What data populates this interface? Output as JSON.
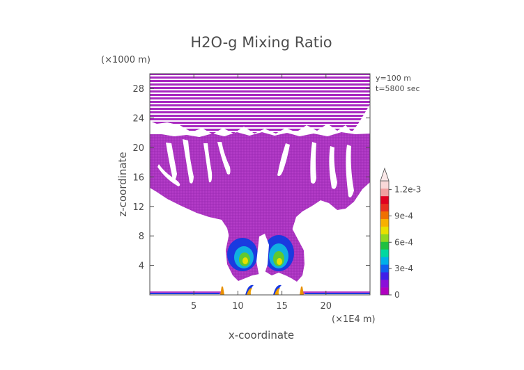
{
  "chart_data": {
    "type": "heatmap",
    "title": "H2O-g Mixing Ratio",
    "xlabel": "x-coordinate",
    "ylabel": "z-coordinate",
    "x_unit": "(×1E4 m)",
    "y_unit": "(×1000 m)",
    "annotations": [
      "y=100 m",
      "t=5800 sec"
    ],
    "xlim": [
      0,
      25
    ],
    "ylim": [
      0,
      30
    ],
    "x_ticks": [
      5,
      10,
      15,
      20
    ],
    "y_ticks": [
      4,
      8,
      12,
      16,
      20,
      24,
      28
    ],
    "x_tick_labels": [
      "5",
      "10",
      "15",
      "20"
    ],
    "y_tick_labels": [
      "4",
      "8",
      "12",
      "16",
      "20",
      "24",
      "28"
    ],
    "colorbar": {
      "min": 0,
      "max": 0.0013,
      "labels": [
        "0",
        "3e-4",
        "6e-4",
        "9e-4",
        "1.2e-3"
      ],
      "label_values": [
        0,
        0.0003,
        0.0006,
        0.0009,
        0.0012
      ],
      "colors": [
        "#b000c0",
        "#8a10d8",
        "#4020e8",
        "#1060f0",
        "#00b0e8",
        "#00d8a0",
        "#20c040",
        "#90d820",
        "#e8e000",
        "#f8b000",
        "#f07000",
        "#e83020",
        "#e00020",
        "#f0a0a0",
        "#f8d8d8"
      ],
      "extend": "max"
    },
    "regions": [
      {
        "name": "upper banded layer",
        "x": [
          0,
          25
        ],
        "z": [
          22,
          30
        ],
        "value": 2e-05
      },
      {
        "name": "anvil layer",
        "x": [
          0,
          25
        ],
        "z": [
          13,
          22
        ],
        "value": 2e-05
      },
      {
        "name": "central column",
        "x": [
          8.5,
          17
        ],
        "z": [
          2,
          13
        ],
        "value": 5e-05
      },
      {
        "name": "left low-level core",
        "x": [
          9,
          12
        ],
        "z": [
          2.5,
          6
        ],
        "value": 0.0005
      },
      {
        "name": "right low-level core",
        "x": [
          13.5,
          16
        ],
        "z": [
          2.5,
          6.5
        ],
        "value": 0.0005
      },
      {
        "name": "near-surface left",
        "x": [
          0,
          8
        ],
        "z": [
          0,
          0.4
        ],
        "value": 0.0003
      },
      {
        "name": "near-surface right",
        "x": [
          17,
          25
        ],
        "z": [
          0,
          0.4
        ],
        "value": 0.0003
      }
    ]
  }
}
